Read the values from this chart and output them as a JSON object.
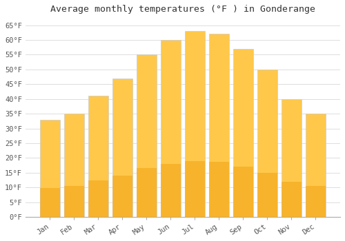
{
  "title": "Average monthly temperatures (°F ) in Gonderange",
  "months": [
    "Jan",
    "Feb",
    "Mar",
    "Apr",
    "May",
    "Jun",
    "Jul",
    "Aug",
    "Sep",
    "Oct",
    "Nov",
    "Dec"
  ],
  "values": [
    33,
    35,
    41,
    47,
    55,
    60,
    63,
    62,
    57,
    50,
    40,
    35
  ],
  "bar_color_top": "#FFC84A",
  "bar_color_bottom": "#F0A010",
  "bar_edge_color": "#cccccc",
  "background_color": "#ffffff",
  "plot_bg_color": "#f5f5f5",
  "grid_color": "#dddddd",
  "yticks": [
    0,
    5,
    10,
    15,
    20,
    25,
    30,
    35,
    40,
    45,
    50,
    55,
    60,
    65
  ],
  "ylim": [
    0,
    67
  ],
  "title_fontsize": 9.5,
  "tick_fontsize": 7.5,
  "font_family": "monospace"
}
